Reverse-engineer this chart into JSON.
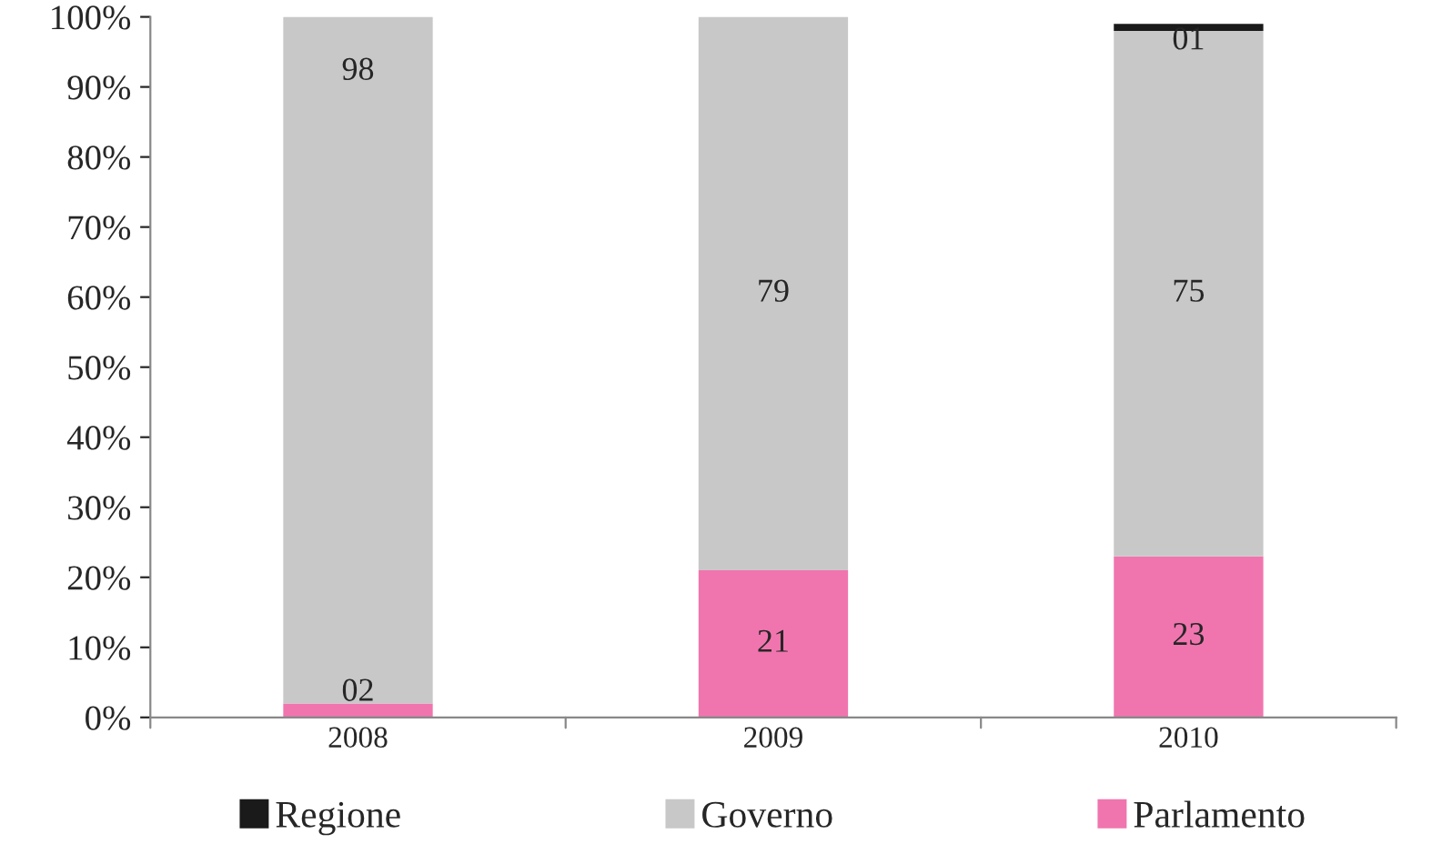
{
  "chart_data": {
    "type": "bar",
    "stacked": true,
    "categories": [
      "2008",
      "2009",
      "2010"
    ],
    "series": [
      {
        "name": "Parlamento",
        "color": "#f075ae",
        "values": [
          2,
          21,
          23
        ],
        "value_labels": [
          "02",
          "21",
          "23"
        ]
      },
      {
        "name": "Governo",
        "color": "#c8c8c8",
        "values": [
          98,
          79,
          75
        ],
        "value_labels": [
          "98",
          "79",
          "75"
        ]
      },
      {
        "name": "Regione",
        "color": "#1a1a1a",
        "values": [
          null,
          null,
          1
        ],
        "value_labels": [
          null,
          null,
          "01"
        ]
      }
    ],
    "ylim": [
      0,
      100
    ],
    "yticks": [
      {
        "value": 0,
        "label": "0%"
      },
      {
        "value": 10,
        "label": "10%"
      },
      {
        "value": 20,
        "label": "20%"
      },
      {
        "value": 30,
        "label": "30%"
      },
      {
        "value": 40,
        "label": "40%"
      },
      {
        "value": 50,
        "label": "50%"
      },
      {
        "value": 60,
        "label": "60%"
      },
      {
        "value": 70,
        "label": "70%"
      },
      {
        "value": 80,
        "label": "80%"
      },
      {
        "value": 90,
        "label": "90%"
      },
      {
        "value": 100,
        "label": "100%"
      }
    ],
    "legend": "bottom",
    "grid": false
  }
}
